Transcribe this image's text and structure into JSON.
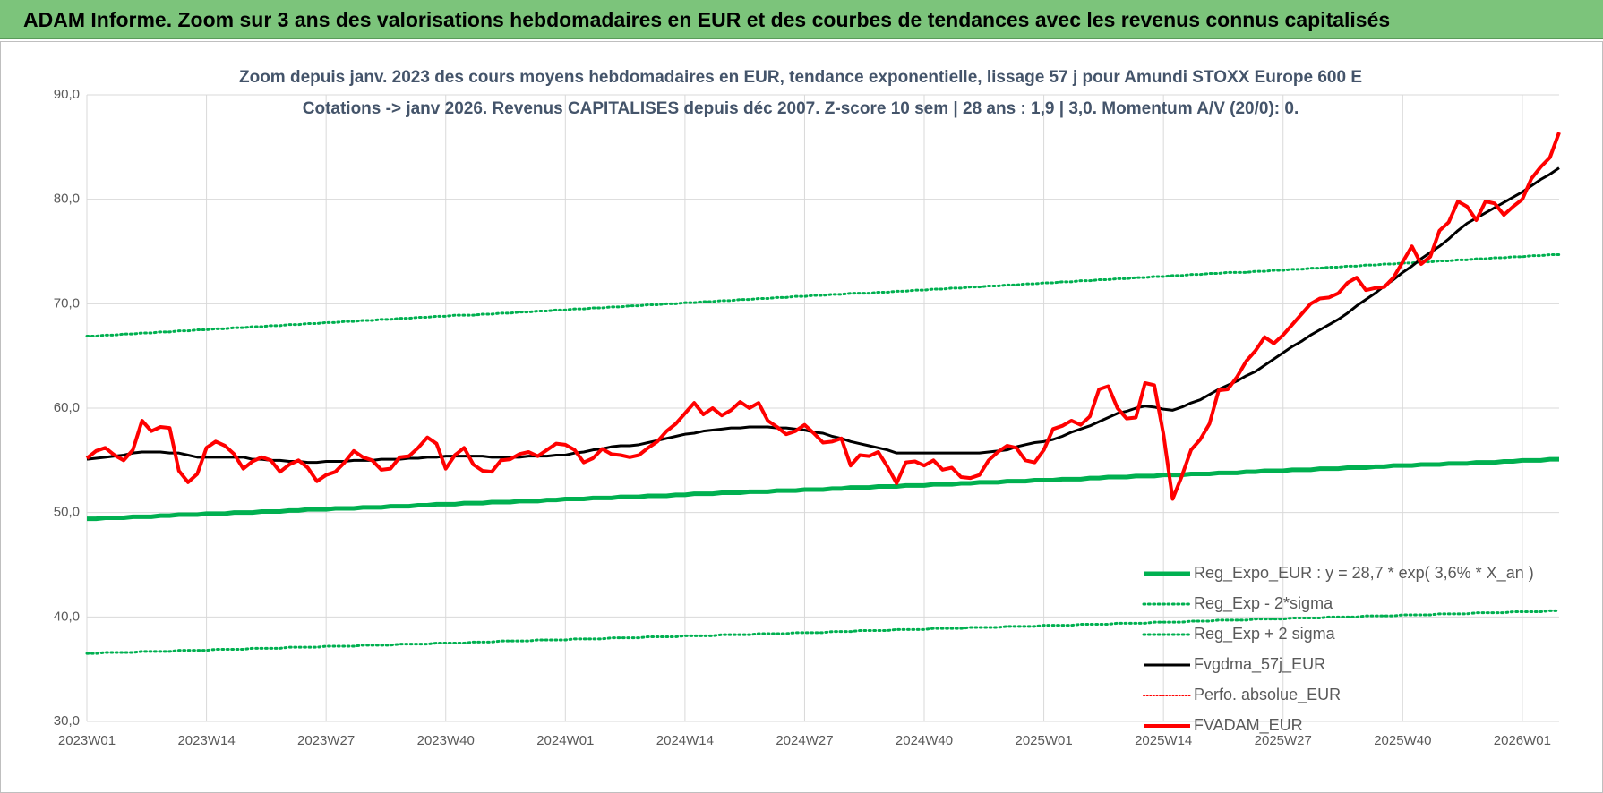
{
  "header": {
    "title": "ADAM Informe. Zoom sur 3 ans des valorisations hebdomadaires en EUR et des courbes de tendances avec les revenus connus capitalisés"
  },
  "chart_data": {
    "type": "line",
    "title": "Zoom depuis janv. 2023 des cours moyens hebdomadaires en EUR, tendance exponentielle, lissage 57 j pour Amundi STOXX Europe 600 E",
    "subtitle": "Cotations -> janv 2026. Revenus CAPITALISES depuis déc 2007. Z-score 10 sem | 28 ans : 1,9 | 3,0. Momentum A/V (20/0): 0.",
    "categories": [
      "2023W01",
      null,
      null,
      null,
      null,
      null,
      null,
      null,
      null,
      null,
      null,
      null,
      null,
      "2023W14",
      null,
      null,
      null,
      null,
      null,
      null,
      null,
      null,
      null,
      null,
      null,
      null,
      "2023W27",
      null,
      null,
      null,
      null,
      null,
      null,
      null,
      null,
      null,
      null,
      null,
      null,
      "2023W40",
      null,
      null,
      null,
      null,
      null,
      null,
      null,
      null,
      null,
      null,
      null,
      null,
      "2024W01",
      null,
      null,
      null,
      null,
      null,
      null,
      null,
      null,
      null,
      null,
      null,
      null,
      "2024W14",
      null,
      null,
      null,
      null,
      null,
      null,
      null,
      null,
      null,
      null,
      null,
      null,
      "2024W27",
      null,
      null,
      null,
      null,
      null,
      null,
      null,
      null,
      null,
      null,
      null,
      null,
      "2024W40",
      null,
      null,
      null,
      null,
      null,
      null,
      null,
      null,
      null,
      null,
      null,
      null,
      "2025W01",
      null,
      null,
      null,
      null,
      null,
      null,
      null,
      null,
      null,
      null,
      null,
      null,
      "2025W14",
      null,
      null,
      null,
      null,
      null,
      null,
      null,
      null,
      null,
      null,
      null,
      null,
      "2025W27",
      null,
      null,
      null,
      null,
      null,
      null,
      null,
      null,
      null,
      null,
      null,
      null,
      "2025W40",
      null,
      null,
      null,
      null,
      null,
      null,
      null,
      null,
      null,
      null,
      null,
      null,
      "2026W01",
      null,
      null,
      null,
      null
    ],
    "ylim": [
      30,
      90
    ],
    "yticks": [
      {
        "value": 30,
        "label": "30,0"
      },
      {
        "value": 40,
        "label": "40,0"
      },
      {
        "value": 50,
        "label": "50,0"
      },
      {
        "value": 60,
        "label": "60,0"
      },
      {
        "value": 70,
        "label": "70,0"
      },
      {
        "value": 80,
        "label": "80,0"
      },
      {
        "value": 90,
        "label": "90,0"
      }
    ],
    "grid": true,
    "legend": "lower right",
    "series": [
      {
        "name": "Reg_Expo_EUR : y = 28,7 * exp( 3,6% * X_an )",
        "color": "#00b050",
        "line_style": "solid",
        "line_width": 5,
        "values": [
          49.4,
          49.4,
          49.5,
          49.5,
          49.5,
          49.6,
          49.6,
          49.6,
          49.7,
          49.7,
          49.8,
          49.8,
          49.8,
          49.9,
          49.9,
          49.9,
          50.0,
          50.0,
          50.0,
          50.1,
          50.1,
          50.1,
          50.2,
          50.2,
          50.3,
          50.3,
          50.3,
          50.4,
          50.4,
          50.4,
          50.5,
          50.5,
          50.5,
          50.6,
          50.6,
          50.6,
          50.7,
          50.7,
          50.8,
          50.8,
          50.8,
          50.9,
          50.9,
          50.9,
          51.0,
          51.0,
          51.0,
          51.1,
          51.1,
          51.1,
          51.2,
          51.2,
          51.3,
          51.3,
          51.3,
          51.4,
          51.4,
          51.4,
          51.5,
          51.5,
          51.5,
          51.6,
          51.6,
          51.6,
          51.7,
          51.7,
          51.8,
          51.8,
          51.8,
          51.9,
          51.9,
          51.9,
          52.0,
          52.0,
          52.0,
          52.1,
          52.1,
          52.1,
          52.2,
          52.2,
          52.2,
          52.3,
          52.3,
          52.4,
          52.4,
          52.4,
          52.5,
          52.5,
          52.5,
          52.6,
          52.6,
          52.6,
          52.7,
          52.7,
          52.7,
          52.8,
          52.8,
          52.9,
          52.9,
          52.9,
          53.0,
          53.0,
          53.0,
          53.1,
          53.1,
          53.1,
          53.2,
          53.2,
          53.2,
          53.3,
          53.3,
          53.4,
          53.4,
          53.4,
          53.5,
          53.5,
          53.5,
          53.6,
          53.6,
          53.6,
          53.7,
          53.7,
          53.7,
          53.8,
          53.8,
          53.8,
          53.9,
          53.9,
          54.0,
          54.0,
          54.0,
          54.1,
          54.1,
          54.1,
          54.2,
          54.2,
          54.2,
          54.3,
          54.3,
          54.3,
          54.4,
          54.4,
          54.5,
          54.5,
          54.5,
          54.6,
          54.6,
          54.6,
          54.7,
          54.7,
          54.7,
          54.8,
          54.8,
          54.8,
          54.9,
          54.9,
          55.0,
          55.0,
          55.0,
          55.1,
          55.1
        ]
      },
      {
        "name": "Reg_Exp - 2*sigma",
        "color": "#00b050",
        "line_style": "dotted",
        "line_width": 3,
        "values": [
          36.5,
          36.5,
          36.6,
          36.6,
          36.6,
          36.6,
          36.7,
          36.7,
          36.7,
          36.7,
          36.8,
          36.8,
          36.8,
          36.8,
          36.9,
          36.9,
          36.9,
          36.9,
          37.0,
          37.0,
          37.0,
          37.0,
          37.1,
          37.1,
          37.1,
          37.1,
          37.2,
          37.2,
          37.2,
          37.2,
          37.3,
          37.3,
          37.3,
          37.3,
          37.4,
          37.4,
          37.4,
          37.4,
          37.5,
          37.5,
          37.5,
          37.5,
          37.6,
          37.6,
          37.6,
          37.7,
          37.7,
          37.7,
          37.7,
          37.8,
          37.8,
          37.8,
          37.8,
          37.9,
          37.9,
          37.9,
          37.9,
          38.0,
          38.0,
          38.0,
          38.0,
          38.1,
          38.1,
          38.1,
          38.1,
          38.2,
          38.2,
          38.2,
          38.2,
          38.3,
          38.3,
          38.3,
          38.3,
          38.4,
          38.4,
          38.4,
          38.4,
          38.5,
          38.5,
          38.5,
          38.5,
          38.6,
          38.6,
          38.6,
          38.7,
          38.7,
          38.7,
          38.7,
          38.8,
          38.8,
          38.8,
          38.8,
          38.9,
          38.9,
          38.9,
          38.9,
          39.0,
          39.0,
          39.0,
          39.0,
          39.1,
          39.1,
          39.1,
          39.1,
          39.2,
          39.2,
          39.2,
          39.2,
          39.3,
          39.3,
          39.3,
          39.3,
          39.4,
          39.4,
          39.4,
          39.4,
          39.5,
          39.5,
          39.5,
          39.5,
          39.6,
          39.6,
          39.6,
          39.7,
          39.7,
          39.7,
          39.7,
          39.8,
          39.8,
          39.8,
          39.8,
          39.9,
          39.9,
          39.9,
          39.9,
          40.0,
          40.0,
          40.0,
          40.0,
          40.1,
          40.1,
          40.1,
          40.1,
          40.2,
          40.2,
          40.2,
          40.2,
          40.3,
          40.3,
          40.3,
          40.3,
          40.4,
          40.4,
          40.4,
          40.4,
          40.5,
          40.5,
          40.5,
          40.5,
          40.6,
          40.6
        ]
      },
      {
        "name": "Reg_Exp + 2 sigma",
        "color": "#00b050",
        "line_style": "dotted",
        "line_width": 3,
        "values": [
          66.9,
          66.9,
          67.0,
          67.0,
          67.1,
          67.1,
          67.2,
          67.2,
          67.3,
          67.3,
          67.4,
          67.4,
          67.5,
          67.5,
          67.6,
          67.6,
          67.7,
          67.7,
          67.8,
          67.8,
          67.9,
          67.9,
          68.0,
          68.0,
          68.1,
          68.1,
          68.2,
          68.2,
          68.3,
          68.3,
          68.4,
          68.4,
          68.5,
          68.5,
          68.6,
          68.6,
          68.7,
          68.7,
          68.8,
          68.8,
          68.9,
          68.9,
          68.9,
          69.0,
          69.0,
          69.1,
          69.1,
          69.2,
          69.2,
          69.3,
          69.3,
          69.4,
          69.4,
          69.5,
          69.5,
          69.6,
          69.6,
          69.7,
          69.7,
          69.8,
          69.8,
          69.9,
          69.9,
          70.0,
          70.0,
          70.1,
          70.1,
          70.2,
          70.2,
          70.3,
          70.3,
          70.4,
          70.4,
          70.5,
          70.5,
          70.6,
          70.6,
          70.7,
          70.7,
          70.8,
          70.8,
          70.9,
          70.9,
          71.0,
          71.0,
          71.0,
          71.1,
          71.1,
          71.2,
          71.2,
          71.3,
          71.3,
          71.4,
          71.4,
          71.5,
          71.5,
          71.6,
          71.6,
          71.7,
          71.7,
          71.8,
          71.8,
          71.9,
          71.9,
          72.0,
          72.0,
          72.1,
          72.1,
          72.2,
          72.2,
          72.3,
          72.3,
          72.4,
          72.4,
          72.5,
          72.5,
          72.6,
          72.6,
          72.7,
          72.7,
          72.8,
          72.8,
          72.9,
          72.9,
          73.0,
          73.0,
          73.0,
          73.1,
          73.1,
          73.2,
          73.2,
          73.3,
          73.3,
          73.4,
          73.4,
          73.5,
          73.5,
          73.6,
          73.6,
          73.7,
          73.7,
          73.8,
          73.8,
          73.9,
          73.9,
          74.0,
          74.0,
          74.1,
          74.1,
          74.2,
          74.2,
          74.3,
          74.3,
          74.4,
          74.4,
          74.5,
          74.5,
          74.6,
          74.6,
          74.7,
          74.7
        ]
      },
      {
        "name": "Fvgdma_57j_EUR",
        "color": "#000000",
        "line_style": "solid",
        "line_width": 3,
        "values": [
          55.1,
          55.2,
          55.3,
          55.4,
          55.5,
          55.7,
          55.8,
          55.8,
          55.8,
          55.7,
          55.7,
          55.5,
          55.3,
          55.3,
          55.3,
          55.3,
          55.3,
          55.3,
          55.1,
          55.1,
          55.0,
          55.0,
          54.9,
          54.9,
          54.8,
          54.8,
          54.9,
          54.9,
          54.9,
          55.0,
          55.0,
          55.0,
          55.1,
          55.1,
          55.1,
          55.2,
          55.2,
          55.3,
          55.3,
          55.4,
          55.4,
          55.4,
          55.4,
          55.4,
          55.3,
          55.3,
          55.3,
          55.3,
          55.4,
          55.4,
          55.4,
          55.5,
          55.5,
          55.7,
          55.8,
          56.0,
          56.1,
          56.3,
          56.4,
          56.4,
          56.5,
          56.7,
          56.9,
          57.1,
          57.3,
          57.5,
          57.6,
          57.8,
          57.9,
          58.0,
          58.1,
          58.1,
          58.2,
          58.2,
          58.2,
          58.1,
          58.1,
          58.0,
          57.9,
          57.7,
          57.6,
          57.3,
          57.1,
          56.8,
          56.6,
          56.4,
          56.2,
          56.0,
          55.7,
          55.7,
          55.7,
          55.7,
          55.7,
          55.7,
          55.7,
          55.7,
          55.7,
          55.7,
          55.8,
          55.9,
          56.0,
          56.3,
          56.5,
          56.7,
          56.8,
          57.0,
          57.3,
          57.7,
          58.0,
          58.3,
          58.7,
          59.1,
          59.5,
          59.7,
          60.0,
          60.2,
          60.1,
          59.9,
          59.8,
          60.1,
          60.5,
          60.8,
          61.3,
          61.8,
          62.2,
          62.6,
          63.1,
          63.5,
          64.1,
          64.7,
          65.3,
          65.9,
          66.4,
          67.0,
          67.5,
          68.0,
          68.5,
          69.1,
          69.8,
          70.4,
          71.0,
          71.7,
          72.3,
          73.0,
          73.6,
          74.3,
          74.9,
          75.5,
          76.2,
          77.0,
          77.7,
          78.2,
          78.7,
          79.2,
          79.7,
          80.2,
          80.7,
          81.3,
          81.9,
          82.4,
          83.0
        ]
      },
      {
        "name": "Perfo. absolue_EUR",
        "color": "#ff0000",
        "line_style": "dotted",
        "line_width": 2
      },
      {
        "name": "FVADAM_EUR",
        "color": "#ff0000",
        "line_style": "solid",
        "line_width": 4,
        "values": [
          55.2,
          55.9,
          56.2,
          55.5,
          55.0,
          56.0,
          58.8,
          57.8,
          58.2,
          58.1,
          54.0,
          52.9,
          53.7,
          56.2,
          56.8,
          56.4,
          55.6,
          54.2,
          54.9,
          55.3,
          55.0,
          53.9,
          54.6,
          55.0,
          54.3,
          53.0,
          53.6,
          53.9,
          54.8,
          55.9,
          55.3,
          55.0,
          54.1,
          54.2,
          55.3,
          55.4,
          56.2,
          57.2,
          56.6,
          54.2,
          55.5,
          56.2,
          54.6,
          54.0,
          53.9,
          55.0,
          55.1,
          55.6,
          55.8,
          55.4,
          56.0,
          56.6,
          56.5,
          56.0,
          54.8,
          55.2,
          56.1,
          55.6,
          55.5,
          55.3,
          55.5,
          56.2,
          56.8,
          57.8,
          58.5,
          59.5,
          60.5,
          59.4,
          60.0,
          59.3,
          59.8,
          60.6,
          60.0,
          60.5,
          58.8,
          58.2,
          57.5,
          57.8,
          58.4,
          57.6,
          56.7,
          56.8,
          57.1,
          54.5,
          55.5,
          55.4,
          55.8,
          54.4,
          52.8,
          54.8,
          54.9,
          54.5,
          55.0,
          54.1,
          54.3,
          53.4,
          53.3,
          53.6,
          55.0,
          55.8,
          56.4,
          56.2,
          55.0,
          54.8,
          56.0,
          58.0,
          58.3,
          58.8,
          58.4,
          59.2,
          61.8,
          62.1,
          60.0,
          59.0,
          59.1,
          62.4,
          62.2,
          57.5,
          51.3,
          53.5,
          56.0,
          57.0,
          58.5,
          61.7,
          61.8,
          63.0,
          64.5,
          65.5,
          66.8,
          66.2,
          67.0,
          68.0,
          69.0,
          70.0,
          70.5,
          70.6,
          71.0,
          72.0,
          72.5,
          71.3,
          71.5,
          71.6,
          72.5,
          74.0,
          75.5,
          73.8,
          74.5,
          77.0,
          77.8,
          79.8,
          79.3,
          78.0,
          79.8,
          79.6,
          78.5,
          79.3,
          80.0,
          82.0,
          83.1,
          84.0,
          86.4
        ]
      }
    ]
  }
}
